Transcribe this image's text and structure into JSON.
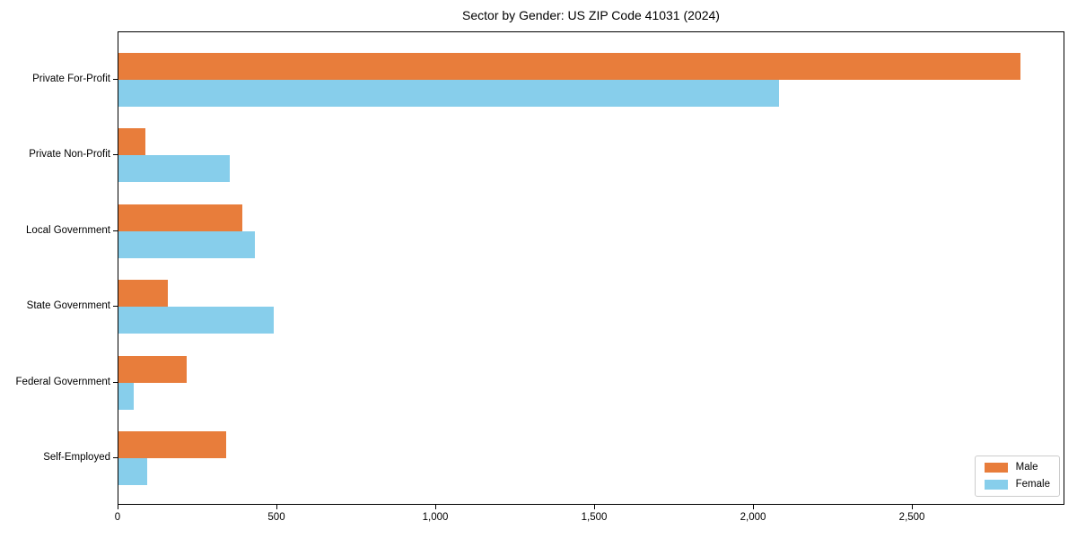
{
  "chart_data": {
    "type": "bar",
    "orientation": "horizontal",
    "title": "Sector by Gender: US ZIP Code 41031 (2024)",
    "categories": [
      "Private For-Profit",
      "Private Non-Profit",
      "Local Government",
      "State Government",
      "Federal Government",
      "Self-Employed"
    ],
    "series": [
      {
        "name": "Male",
        "color": "#e87d3b",
        "values": [
          2840,
          85,
          390,
          155,
          215,
          340
        ]
      },
      {
        "name": "Female",
        "color": "#87ceeb",
        "values": [
          2080,
          350,
          430,
          490,
          48,
          90
        ]
      }
    ],
    "xlabel": "",
    "ylabel": "",
    "xlim": [
      0,
      2980
    ],
    "xticks": [
      0,
      500,
      1000,
      1500,
      2000,
      2500
    ],
    "xtick_labels": [
      "0",
      "500",
      "1,000",
      "1,500",
      "2,000",
      "2,500"
    ],
    "grid": false,
    "legend_position": "lower right",
    "axis_color": "#000000",
    "background_color": "#ffffff"
  }
}
